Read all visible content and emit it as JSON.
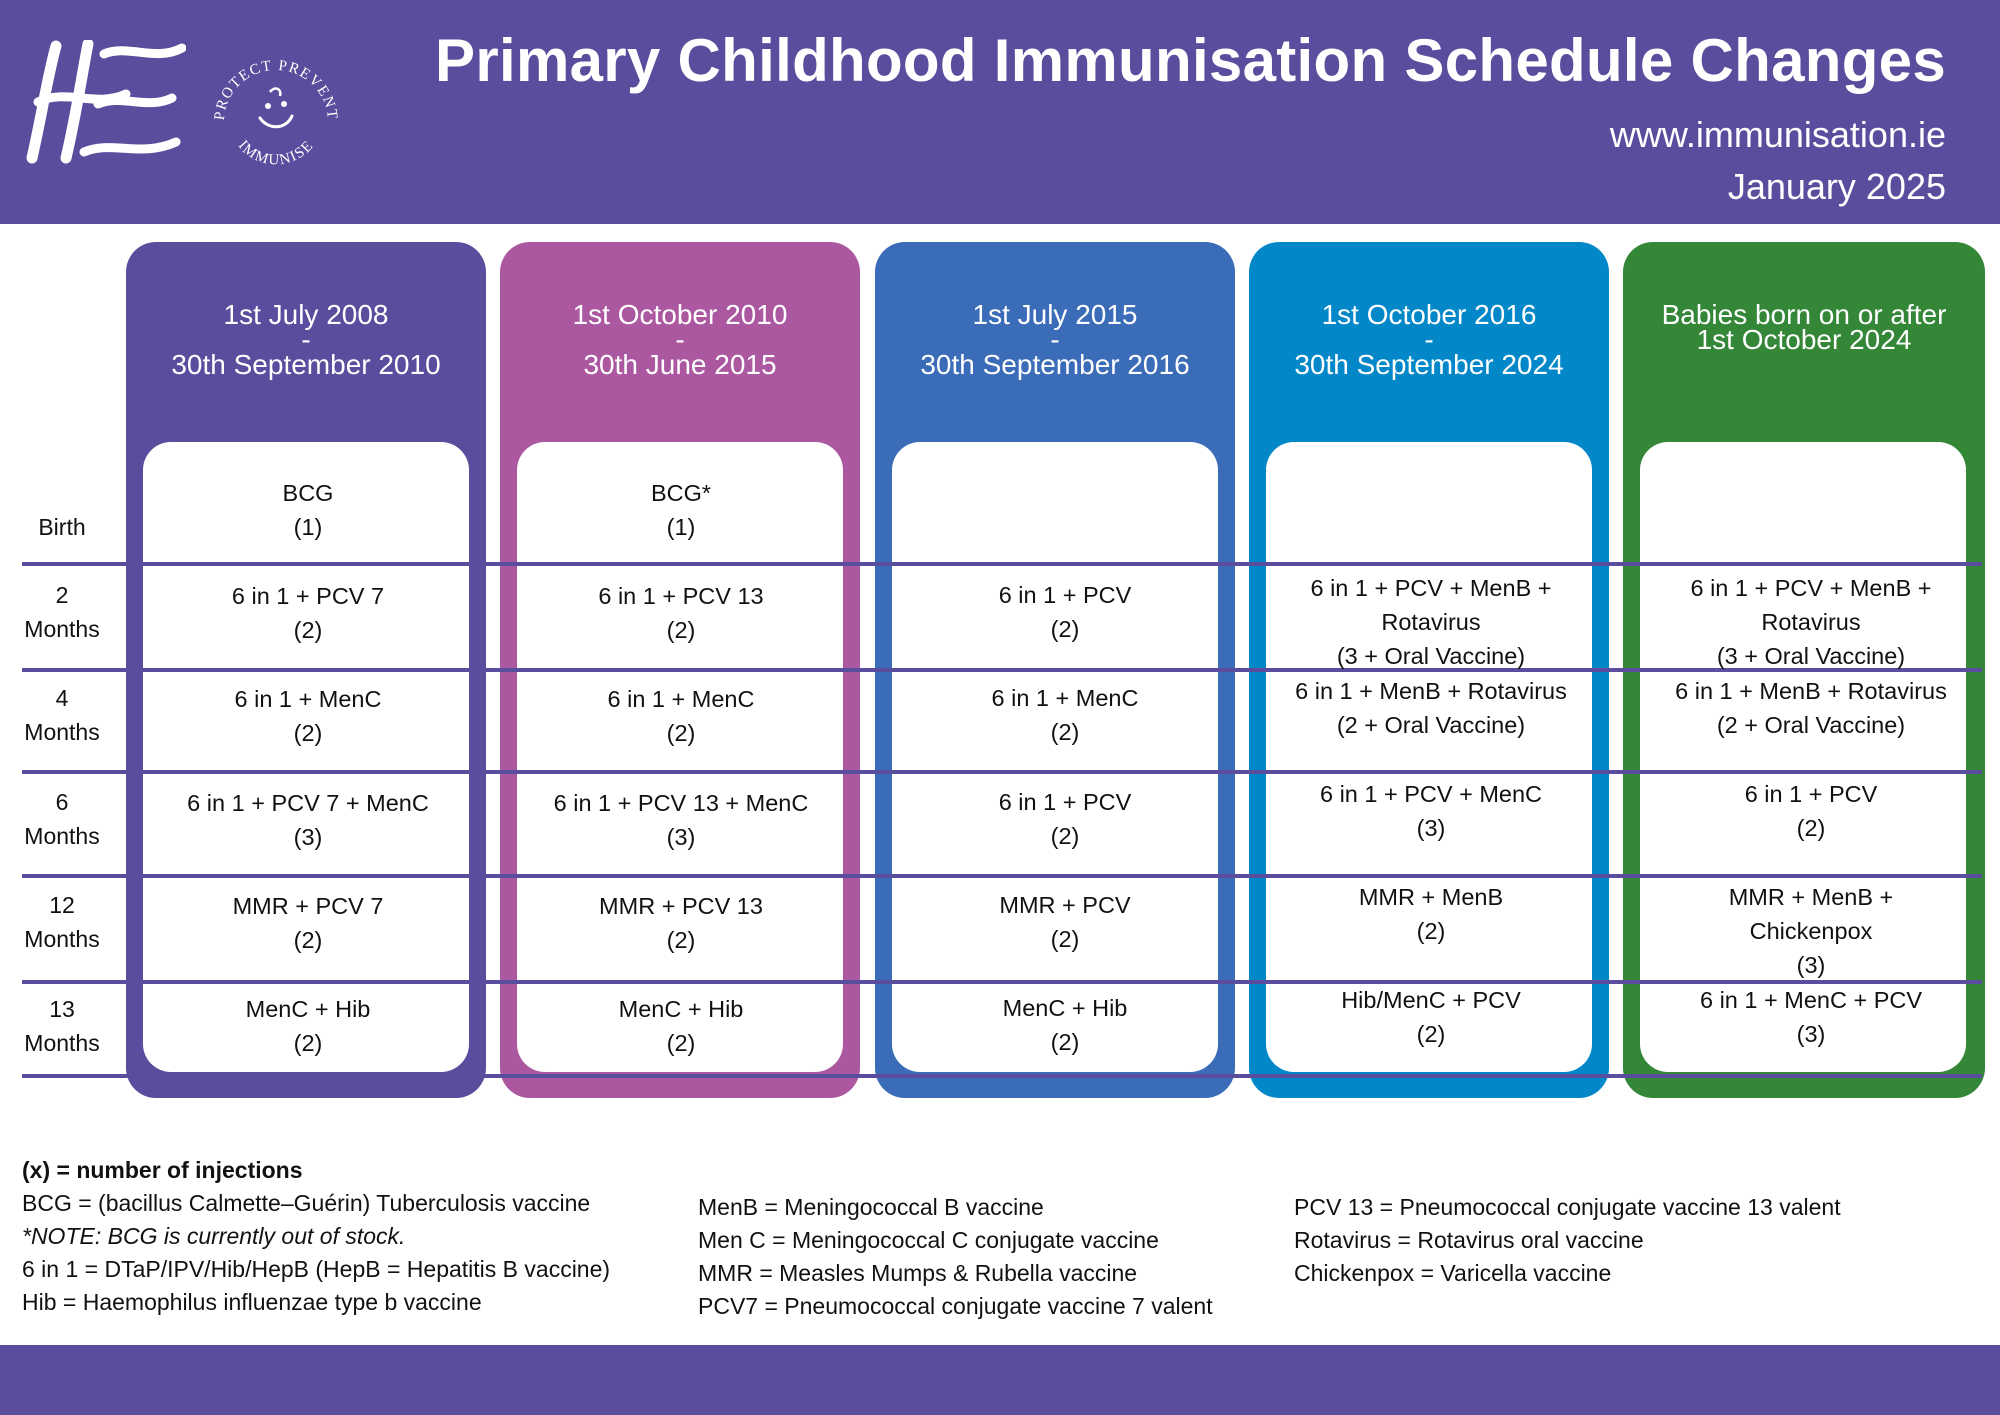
{
  "header": {
    "title": "Primary Childhood Immunisation Schedule Changes",
    "website": "www.immunisation.ie",
    "date": "January 2025",
    "logos": {
      "hse_logo_text": "HSE",
      "badge_text_top": "PROTECT PREVENT",
      "badge_text_bottom": "IMMUNISE"
    },
    "background_color": "#5b4d9d"
  },
  "row_labels": [
    {
      "l1": "Birth",
      "l2": ""
    },
    {
      "l1": "2",
      "l2": "Months"
    },
    {
      "l1": "4",
      "l2": "Months"
    },
    {
      "l1": "6",
      "l2": "Months"
    },
    {
      "l1": "12",
      "l2": "Months"
    },
    {
      "l1": "13",
      "l2": "Months"
    }
  ],
  "columns": [
    {
      "color": "#5b4d9d",
      "header": {
        "line1": "1st July 2008",
        "line2": "-",
        "line3": "30th September 2010"
      },
      "cells": [
        [
          "BCG",
          "(1)"
        ],
        [
          "6 in 1 + PCV 7",
          "(2)"
        ],
        [
          "6 in 1 + MenC",
          "(2)"
        ],
        [
          "6 in 1 + PCV 7 + MenC",
          "(3)"
        ],
        [
          "MMR + PCV 7",
          "(2)"
        ],
        [
          "MenC + Hib",
          "(2)"
        ]
      ]
    },
    {
      "color": "#ab58a1",
      "header": {
        "line1": "1st October 2010",
        "line2": "-",
        "line3": "30th June 2015"
      },
      "cells": [
        [
          "BCG*",
          "(1)"
        ],
        [
          "6 in 1 + PCV 13",
          "(2)"
        ],
        [
          "6 in 1 + MenC",
          "(2)"
        ],
        [
          "6 in 1 + PCV 13 + MenC",
          "(3)"
        ],
        [
          "MMR + PCV 13",
          "(2)"
        ],
        [
          "MenC + Hib",
          "(2)"
        ]
      ]
    },
    {
      "color": "#3a6cb8",
      "header": {
        "line1": "1st July 2015",
        "line2": "-",
        "line3": "30th September 2016"
      },
      "cells": [
        [],
        [
          "6 in 1 + PCV",
          "(2)"
        ],
        [
          "6 in 1 + MenC",
          "(2)"
        ],
        [
          "6 in 1 + PCV",
          "(2)"
        ],
        [
          "MMR + PCV",
          "(2)"
        ],
        [
          "MenC + Hib",
          "(2)"
        ]
      ]
    },
    {
      "color": "#0288c8",
      "header": {
        "line1": "1st October 2016",
        "line2": "-",
        "line3": "30th September 2024"
      },
      "cells": [
        [],
        [
          "6 in 1 + PCV + MenB +",
          "Rotavirus",
          "(3 + Oral Vaccine)"
        ],
        [
          "6 in 1 + MenB + Rotavirus",
          "(2 + Oral Vaccine)"
        ],
        [
          "6 in 1 + PCV + MenC",
          "(3)"
        ],
        [
          "MMR + MenB",
          "(2)"
        ],
        [
          "Hib/MenC + PCV",
          "(2)"
        ]
      ]
    },
    {
      "color": "#338736",
      "header": {
        "line1": "Babies born on or after",
        "line2": "1st October 2024",
        "line3": ""
      },
      "cells": [
        [],
        [
          "6 in 1 + PCV + MenB +",
          "Rotavirus",
          "(3 + Oral Vaccine)"
        ],
        [
          "6 in 1 + MenB + Rotavirus",
          "(2 + Oral Vaccine)"
        ],
        [
          "6 in 1 + PCV",
          "(2)"
        ],
        [
          "MMR + MenB +",
          "Chickenpox",
          "(3)"
        ],
        [
          "6 in 1 + MenC + PCV",
          "(3)"
        ]
      ]
    }
  ],
  "legend": {
    "col1": [
      "(x) = number of injections",
      "BCG = (bacillus Calmette–Guérin) Tuberculosis vaccine",
      "*NOTE: BCG is currently out of stock.",
      "6 in 1 = DTaP/IPV/Hib/HepB (HepB = Hepatitis B vaccine)",
      "Hib = Haemophilus influenzae type b vaccine"
    ],
    "col2": [
      "MenB = Meningococcal B vaccine",
      "Men C = Meningococcal C conjugate vaccine",
      "MMR = Measles Mumps & Rubella vaccine",
      "PCV7 = Pneumococcal conjugate vaccine 7 valent"
    ],
    "col3": [
      "PCV 13 = Pneumococcal conjugate vaccine 13 valent",
      "Rotavirus = Rotavirus oral vaccine",
      "Chickenpox = Varicella vaccine"
    ]
  }
}
